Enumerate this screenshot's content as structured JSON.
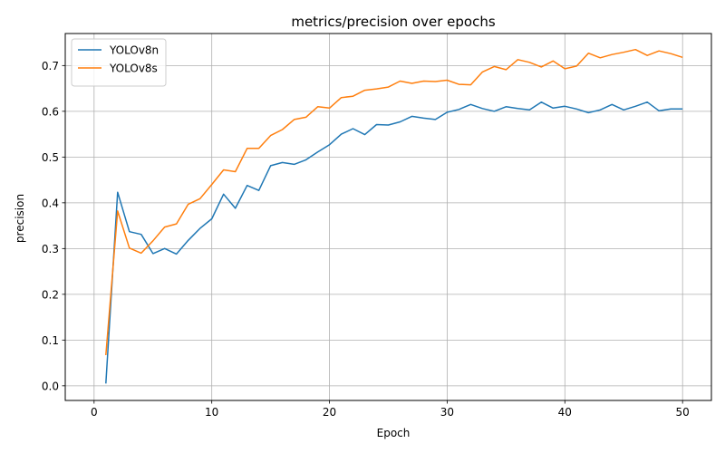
{
  "chart_data": {
    "type": "line",
    "title": "metrics/precision over epochs",
    "xlabel": "Epoch",
    "ylabel": "precision",
    "xlim": [
      -2.45,
      52.45
    ],
    "ylim": [
      -0.032,
      0.77
    ],
    "xticks": [
      0,
      10,
      20,
      30,
      40,
      50
    ],
    "yticks": [
      0.0,
      0.1,
      0.2,
      0.3,
      0.4,
      0.5,
      0.6,
      0.7
    ],
    "xtick_labels": [
      "0",
      "10",
      "20",
      "30",
      "40",
      "50"
    ],
    "ytick_labels": [
      "0.0",
      "0.1",
      "0.2",
      "0.3",
      "0.4",
      "0.5",
      "0.6",
      "0.7"
    ],
    "grid": true,
    "legend_position": "top-left",
    "x": [
      1,
      2,
      3,
      4,
      5,
      6,
      7,
      8,
      9,
      10,
      11,
      12,
      13,
      14,
      15,
      16,
      17,
      18,
      19,
      20,
      21,
      22,
      23,
      24,
      25,
      26,
      27,
      28,
      29,
      30,
      31,
      32,
      33,
      34,
      35,
      36,
      37,
      38,
      39,
      40,
      41,
      42,
      43,
      44,
      45,
      46,
      47,
      48,
      49,
      50
    ],
    "series": [
      {
        "name": "YOLOv8n",
        "color": "#1f77b4",
        "values": [
          0.005,
          0.423,
          0.337,
          0.331,
          0.289,
          0.3,
          0.288,
          0.318,
          0.344,
          0.365,
          0.419,
          0.388,
          0.438,
          0.427,
          0.481,
          0.488,
          0.484,
          0.494,
          0.511,
          0.527,
          0.55,
          0.562,
          0.549,
          0.571,
          0.57,
          0.577,
          0.589,
          0.585,
          0.582,
          0.598,
          0.604,
          0.615,
          0.606,
          0.6,
          0.61,
          0.606,
          0.603,
          0.62,
          0.607,
          0.611,
          0.605,
          0.597,
          0.603,
          0.615,
          0.603,
          0.611,
          0.62,
          0.601,
          0.605,
          0.605
        ]
      },
      {
        "name": "YOLOv8s",
        "color": "#ff7f0e",
        "values": [
          0.067,
          0.382,
          0.301,
          0.29,
          0.317,
          0.347,
          0.354,
          0.397,
          0.409,
          0.44,
          0.472,
          0.468,
          0.519,
          0.519,
          0.547,
          0.56,
          0.582,
          0.587,
          0.61,
          0.607,
          0.63,
          0.633,
          0.646,
          0.649,
          0.653,
          0.666,
          0.661,
          0.666,
          0.665,
          0.668,
          0.659,
          0.658,
          0.686,
          0.698,
          0.691,
          0.713,
          0.707,
          0.697,
          0.71,
          0.693,
          0.699,
          0.727,
          0.717,
          0.724,
          0.729,
          0.735,
          0.722,
          0.732,
          0.726,
          0.718
        ]
      }
    ]
  }
}
